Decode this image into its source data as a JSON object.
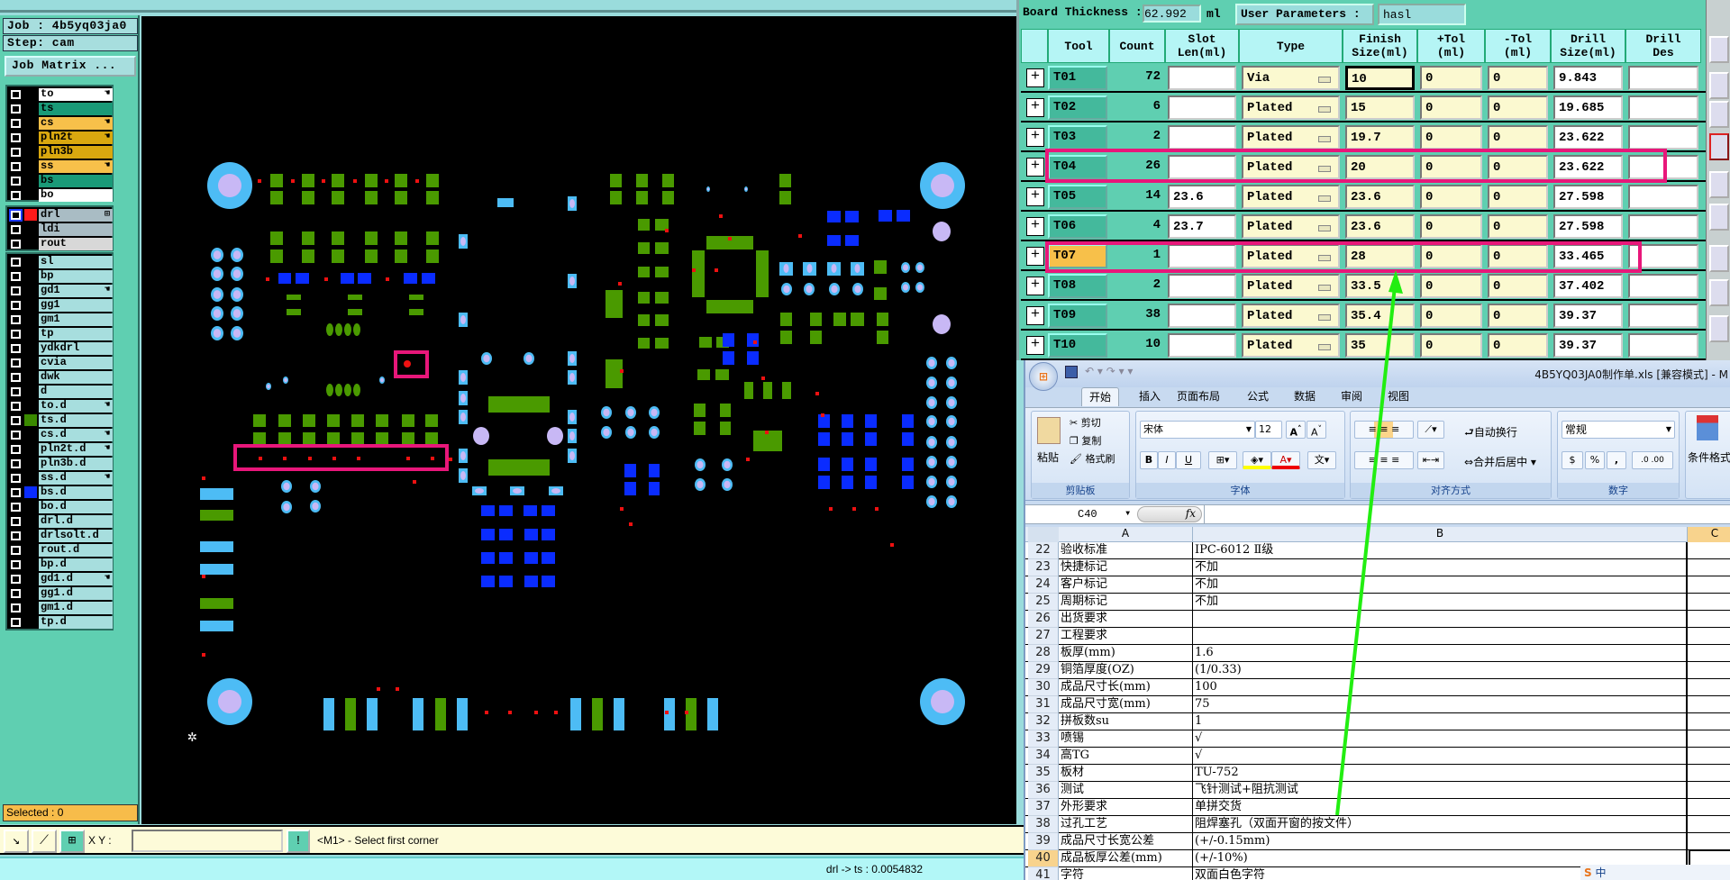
{
  "left": {
    "job_label": "Job : 4b5yq03ja0",
    "step_label": "Step: cam",
    "job_matrix_button": "Job Matrix ...",
    "groups": [
      [
        {
          "name": "to",
          "color": "#ffffff",
          "flag": true
        },
        {
          "name": "ts",
          "color": "#1a9a78",
          "flag": false
        },
        {
          "name": "cs",
          "color": "#f7c04a",
          "flag": true
        },
        {
          "name": "pln2t",
          "color": "#d9a80f",
          "flag": true
        },
        {
          "name": "pln3b",
          "color": "#d9a80f",
          "flag": false
        },
        {
          "name": "ss",
          "color": "#f7c04a",
          "flag": true
        },
        {
          "name": "bs",
          "color": "#1a9a78",
          "flag": false
        },
        {
          "name": "bo",
          "color": "#ffffff",
          "flag": false
        }
      ],
      [
        {
          "name": "drl",
          "color": "#a9bcc4",
          "flag": false,
          "swatch": "#ff1a1a",
          "selected": true,
          "grid_icon": true
        },
        {
          "name": "ldi",
          "color": "#a9bcc4",
          "flag": false
        },
        {
          "name": "rout",
          "color": "#d8d8d8",
          "flag": false
        }
      ],
      [
        {
          "name": "sl",
          "color": "#a7dede"
        },
        {
          "name": "bp",
          "color": "#a7dede"
        },
        {
          "name": "gd1",
          "color": "#a7dede",
          "flag": true
        },
        {
          "name": "gg1",
          "color": "#a7dede"
        },
        {
          "name": "gm1",
          "color": "#a7dede"
        },
        {
          "name": "tp",
          "color": "#a7dede"
        },
        {
          "name": "ydkdrl",
          "color": "#a7dede"
        },
        {
          "name": "cvia",
          "color": "#a7dede"
        },
        {
          "name": "dwk",
          "color": "#a7dede"
        },
        {
          "name": "d",
          "color": "#a7dede"
        },
        {
          "name": "to.d",
          "color": "#a7dede",
          "flag": true
        },
        {
          "name": "ts.d",
          "color": "#a7dede",
          "swatch": "#3a8a00"
        },
        {
          "name": "cs.d",
          "color": "#a7dede",
          "flag": true
        },
        {
          "name": "pln2t.d",
          "color": "#a7dede",
          "flag": true
        },
        {
          "name": "pln3b.d",
          "color": "#a7dede"
        },
        {
          "name": "ss.d",
          "color": "#a7dede",
          "flag": true
        },
        {
          "name": "bs.d",
          "color": "#a7dede",
          "swatch": "#0a2cff"
        },
        {
          "name": "bo.d",
          "color": "#a7dede"
        },
        {
          "name": "drl.d",
          "color": "#a7dede"
        },
        {
          "name": "drlsolt.d",
          "color": "#a7dede"
        },
        {
          "name": "rout.d",
          "color": "#a7dede"
        },
        {
          "name": "bp.d",
          "color": "#a7dede"
        },
        {
          "name": "gd1.d",
          "color": "#a7dede",
          "flag": true
        },
        {
          "name": "gg1.d",
          "color": "#a7dede"
        },
        {
          "name": "gm1.d",
          "color": "#a7dede"
        },
        {
          "name": "tp.d",
          "color": "#a7dede"
        }
      ]
    ],
    "selected_label": "Selected : 0"
  },
  "toolbar": {
    "xy_label": "X Y :",
    "xy_value": "",
    "prompt_button": "!",
    "message": "<M1> - Select first corner"
  },
  "status": {
    "text": "drl -> ts : 0.0054832"
  },
  "drill_table": {
    "board_thickness_label": "Board Thickness :",
    "board_thickness_value": "62.992",
    "board_thickness_unit": "ml",
    "user_params_label": "User Parameters :",
    "user_params_value": "hasl",
    "headers": [
      "Tool",
      "Count",
      "Slot\nLen(ml)",
      "Type",
      "Finish\nSize(ml)",
      "+Tol\n(ml)",
      "-Tol\n(ml)",
      "Drill\nSize(ml)",
      "Drill\nDes"
    ],
    "rows": [
      {
        "tool": "T01",
        "count": "72",
        "slot": "",
        "type": "Via",
        "finish": "10",
        "ptol": "0",
        "mtol": "0",
        "drill": "9.843",
        "des": ""
      },
      {
        "tool": "T02",
        "count": "6",
        "slot": "",
        "type": "Plated",
        "finish": "15",
        "ptol": "0",
        "mtol": "0",
        "drill": "19.685",
        "des": ""
      },
      {
        "tool": "T03",
        "count": "2",
        "slot": "",
        "type": "Plated",
        "finish": "19.7",
        "ptol": "0",
        "mtol": "0",
        "drill": "23.622",
        "des": ""
      },
      {
        "tool": "T04",
        "count": "26",
        "slot": "",
        "type": "Plated",
        "finish": "20",
        "ptol": "0",
        "mtol": "0",
        "drill": "23.622",
        "des": ""
      },
      {
        "tool": "T05",
        "count": "14",
        "slot": "23.6",
        "type": "Plated",
        "finish": "23.6",
        "ptol": "0",
        "mtol": "0",
        "drill": "27.598",
        "des": ""
      },
      {
        "tool": "T06",
        "count": "4",
        "slot": "23.7",
        "type": "Plated",
        "finish": "23.6",
        "ptol": "0",
        "mtol": "0",
        "drill": "27.598",
        "des": ""
      },
      {
        "tool": "T07",
        "count": "1",
        "slot": "",
        "type": "Plated",
        "finish": "28",
        "ptol": "0",
        "mtol": "0",
        "drill": "33.465",
        "des": "",
        "highlight": true
      },
      {
        "tool": "T08",
        "count": "2",
        "slot": "",
        "type": "Plated",
        "finish": "33.5",
        "ptol": "0",
        "mtol": "0",
        "drill": "37.402",
        "des": ""
      },
      {
        "tool": "T09",
        "count": "38",
        "slot": "",
        "type": "Plated",
        "finish": "35.4",
        "ptol": "0",
        "mtol": "0",
        "drill": "39.37",
        "des": ""
      },
      {
        "tool": "T10",
        "count": "10",
        "slot": "",
        "type": "Plated",
        "finish": "35",
        "ptol": "0",
        "mtol": "0",
        "drill": "39.37",
        "des": ""
      }
    ]
  },
  "excel": {
    "title": "4B5YQ03JA0制作单.xls  [兼容模式] - M",
    "tabs": [
      "开始",
      "插入",
      "页面布局",
      "公式",
      "数据",
      "审阅",
      "视图"
    ],
    "clipboard": {
      "paste": "粘贴",
      "cut": "剪切",
      "copy": "复制",
      "format_painter": "格式刷",
      "label": "剪贴板"
    },
    "font": {
      "name": "宋体",
      "size": "12",
      "bold": "B",
      "italic": "I",
      "underline": "U",
      "label": "字体"
    },
    "alignment": {
      "wrap": "自动换行",
      "merge": "合并后居中",
      "label": "对齐方式"
    },
    "number": {
      "format": "常规",
      "percent": "%",
      "comma": ",",
      "label": "数字"
    },
    "styles": {
      "conditional": "条件格式"
    },
    "name_box": "C40",
    "fx": "fx",
    "columns": [
      "A",
      "B",
      "C"
    ],
    "rows": [
      {
        "n": "22",
        "a": "验收标准",
        "b": "IPC-6012 Ⅱ级"
      },
      {
        "n": "23",
        "a": "快捷标记",
        "b": "不加"
      },
      {
        "n": "24",
        "a": "客户标记",
        "b": "不加"
      },
      {
        "n": "25",
        "a": "周期标记",
        "b": "不加"
      },
      {
        "n": "26",
        "a": "出货要求",
        "b": ""
      },
      {
        "n": "27",
        "a": "工程要求",
        "b": ""
      },
      {
        "n": "28",
        "a": "板厚(mm)",
        "b": "1.6"
      },
      {
        "n": "29",
        "a": "铜箔厚度(OZ)",
        "b": " (1/0.33)"
      },
      {
        "n": "30",
        "a": "成品尺寸长(mm)",
        "b": "100"
      },
      {
        "n": "31",
        "a": "成品尺寸宽(mm)",
        "b": "75"
      },
      {
        "n": "32",
        "a": "拼板数su",
        "b": "1"
      },
      {
        "n": "33",
        "a": "喷锡",
        "b": "√"
      },
      {
        "n": "34",
        "a": "高TG",
        "b": "√"
      },
      {
        "n": "35",
        "a": "板材",
        "b": "TU-752"
      },
      {
        "n": "36",
        "a": "测试",
        "b": "飞针测试+阻抗测试"
      },
      {
        "n": "37",
        "a": "外形要求",
        "b": "单拼交货"
      },
      {
        "n": "38",
        "a": "过孔工艺",
        "b": "阻焊塞孔（双面开窗的按文件）"
      },
      {
        "n": "39",
        "a": "成品尺寸长宽公差",
        "b": "(+/-0.15mm)"
      },
      {
        "n": "40",
        "a": "成品板厚公差(mm)",
        "b": "(+/-10%)",
        "selected": true
      },
      {
        "n": "41",
        "a": "字符",
        "b": "双面白色字符"
      }
    ],
    "ime": "中"
  },
  "colors": {
    "annotation": "#e8177a",
    "arrow": "#22ee11",
    "canvas": "#000000"
  }
}
